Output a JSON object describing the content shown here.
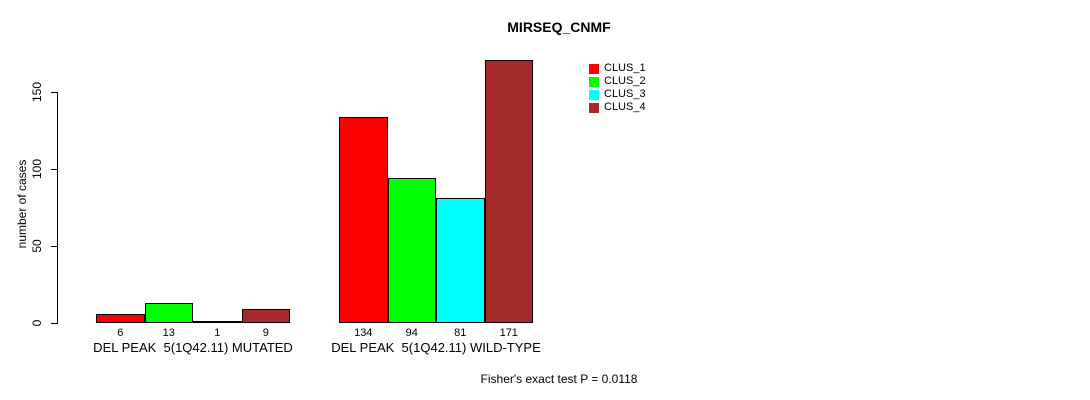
{
  "title": "MIRSEQ_CNMF",
  "ylabel": "number of cases",
  "annotation": "Fisher's exact test P = 0.0118",
  "legend": {
    "items": [
      {
        "label": "CLUS_1",
        "color": "#FF0000"
      },
      {
        "label": "CLUS_2",
        "color": "#00FF00"
      },
      {
        "label": "CLUS_3",
        "color": "#00FFFF"
      },
      {
        "label": "CLUS_4",
        "color": "#A52A2A"
      }
    ]
  },
  "chart_data": {
    "type": "bar",
    "title": "MIRSEQ_CNMF",
    "ylabel": "number of cases",
    "xlabel": "",
    "categories": [
      "DEL PEAK  5(1Q42.11) MUTATED",
      "DEL PEAK  5(1Q42.11) WILD-TYPE"
    ],
    "series": [
      {
        "name": "CLUS_1",
        "color": "#FF0000",
        "values": [
          6,
          134
        ]
      },
      {
        "name": "CLUS_2",
        "color": "#00FF00",
        "values": [
          13,
          94
        ]
      },
      {
        "name": "CLUS_3",
        "color": "#00FFFF",
        "values": [
          1,
          81
        ]
      },
      {
        "name": "CLUS_4",
        "color": "#A52A2A",
        "values": [
          9,
          171
        ]
      }
    ],
    "bar_value_labels": [
      [
        "6",
        "13",
        "1",
        "9"
      ],
      [
        "134",
        "94",
        "81",
        "171"
      ]
    ],
    "yticks": [
      0,
      50,
      100,
      150
    ],
    "ylim": [
      0,
      178
    ],
    "grid": false,
    "legend_position": "upper-right-inside",
    "annotation": "Fisher's exact test P = 0.0118"
  }
}
